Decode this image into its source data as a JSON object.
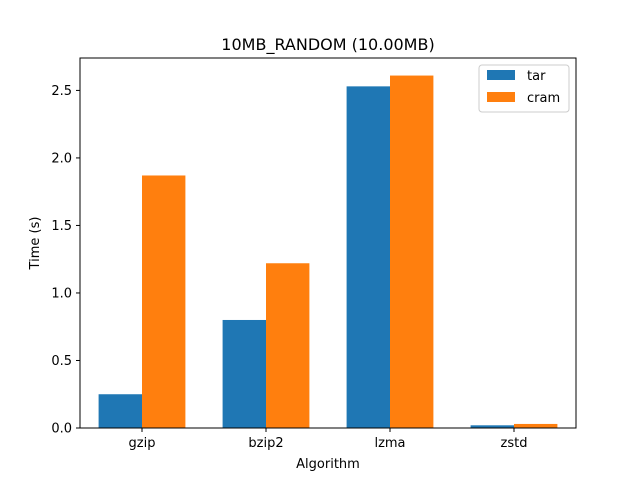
{
  "chart_data": {
    "type": "bar",
    "title": "10MB_RANDOM (10.00MB)",
    "xlabel": "Algorithm",
    "ylabel": "Time (s)",
    "categories": [
      "gzip",
      "bzip2",
      "lzma",
      "zstd"
    ],
    "series": [
      {
        "name": "tar",
        "color": "#1f77b4",
        "values": [
          0.25,
          0.8,
          2.53,
          0.02
        ]
      },
      {
        "name": "cram",
        "color": "#ff7f0e",
        "values": [
          1.87,
          1.22,
          2.61,
          0.03
        ]
      }
    ],
    "ylim": [
      0,
      2.74
    ],
    "yticks": [
      0.0,
      0.5,
      1.0,
      1.5,
      2.0,
      2.5
    ],
    "ytick_labels": [
      "0.0",
      "0.5",
      "1.0",
      "1.5",
      "2.0",
      "2.5"
    ],
    "grid": false,
    "legend_position": "top-right"
  }
}
